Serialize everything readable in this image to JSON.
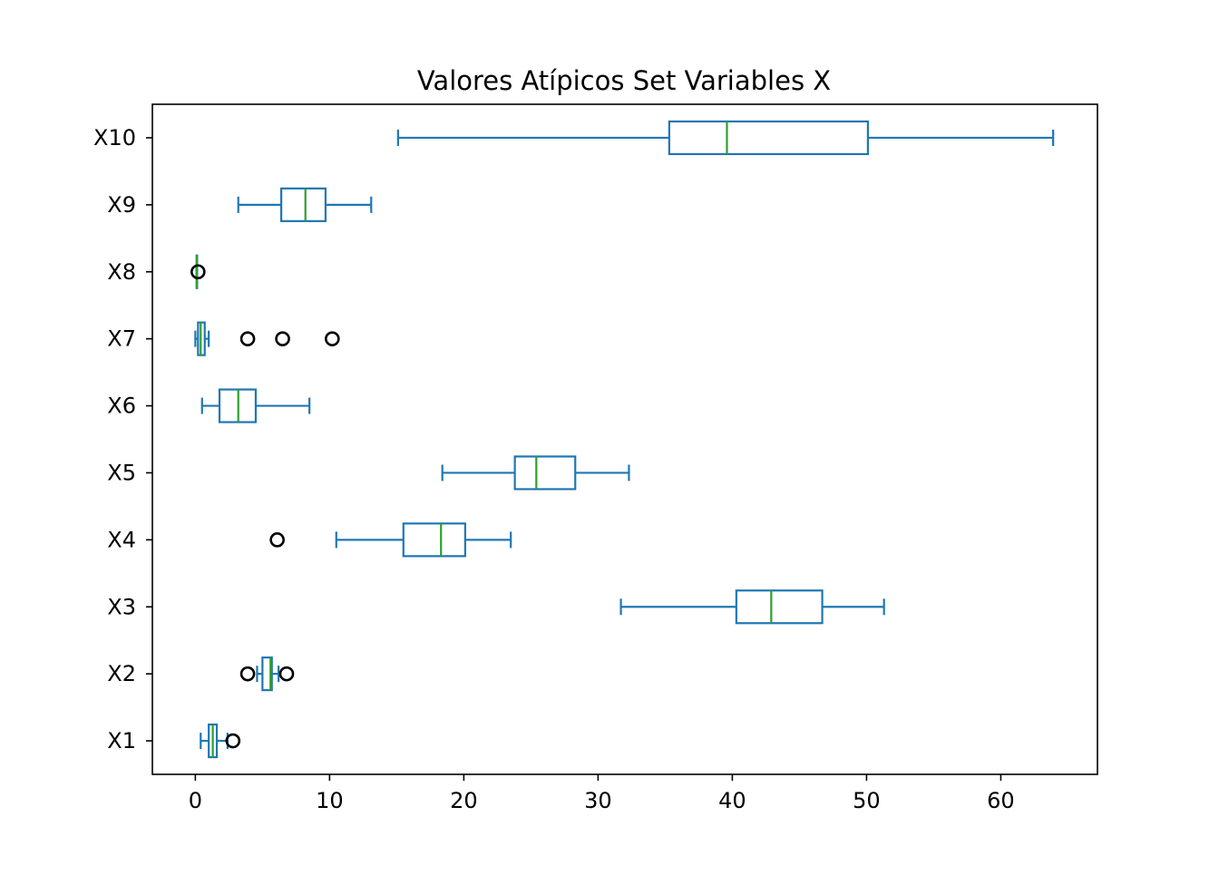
{
  "chart_data": {
    "type": "boxplot",
    "orientation": "horizontal",
    "title": "Valores Atípicos Set Variables X",
    "xlabel": "",
    "ylabel": "",
    "xlim": [
      -3.2,
      67.2
    ],
    "xticks": [
      0,
      10,
      20,
      30,
      40,
      50,
      60
    ],
    "grid": false,
    "legend": "none",
    "colors": {
      "box": "#1f77b4",
      "median": "#2ca02c",
      "outlier": "#000000"
    },
    "categories": [
      "X1",
      "X2",
      "X3",
      "X4",
      "X5",
      "X6",
      "X7",
      "X8",
      "X9",
      "X10"
    ],
    "boxes": [
      {
        "label": "X1",
        "whislo": 0.4,
        "q1": 1.0,
        "med": 1.3,
        "q3": 1.6,
        "whishi": 2.4,
        "fliers": [
          2.8
        ]
      },
      {
        "label": "X2",
        "whislo": 4.6,
        "q1": 5.0,
        "med": 5.6,
        "q3": 5.7,
        "whishi": 6.2,
        "fliers": [
          3.9,
          6.8
        ]
      },
      {
        "label": "X3",
        "whislo": 31.7,
        "q1": 40.3,
        "med": 42.9,
        "q3": 46.7,
        "whishi": 51.3,
        "fliers": []
      },
      {
        "label": "X4",
        "whislo": 10.5,
        "q1": 15.5,
        "med": 18.3,
        "q3": 20.1,
        "whishi": 23.5,
        "fliers": [
          6.1
        ]
      },
      {
        "label": "X5",
        "whislo": 18.4,
        "q1": 23.8,
        "med": 25.4,
        "q3": 28.3,
        "whishi": 32.3,
        "fliers": []
      },
      {
        "label": "X6",
        "whislo": 0.5,
        "q1": 1.8,
        "med": 3.2,
        "q3": 4.5,
        "whishi": 8.5,
        "fliers": []
      },
      {
        "label": "X7",
        "whislo": 0.0,
        "q1": 0.2,
        "med": 0.4,
        "q3": 0.7,
        "whishi": 1.0,
        "fliers": [
          3.9,
          6.5,
          10.2
        ]
      },
      {
        "label": "X8",
        "whislo": 0.1,
        "q1": 0.1,
        "med": 0.1,
        "q3": 0.1,
        "whishi": 0.1,
        "fliers": [
          0.2
        ]
      },
      {
        "label": "X9",
        "whislo": 3.2,
        "q1": 6.4,
        "med": 8.2,
        "q3": 9.7,
        "whishi": 13.1,
        "fliers": []
      },
      {
        "label": "X10",
        "whislo": 15.1,
        "q1": 35.3,
        "med": 39.6,
        "q3": 50.1,
        "whishi": 63.9,
        "fliers": []
      }
    ]
  }
}
